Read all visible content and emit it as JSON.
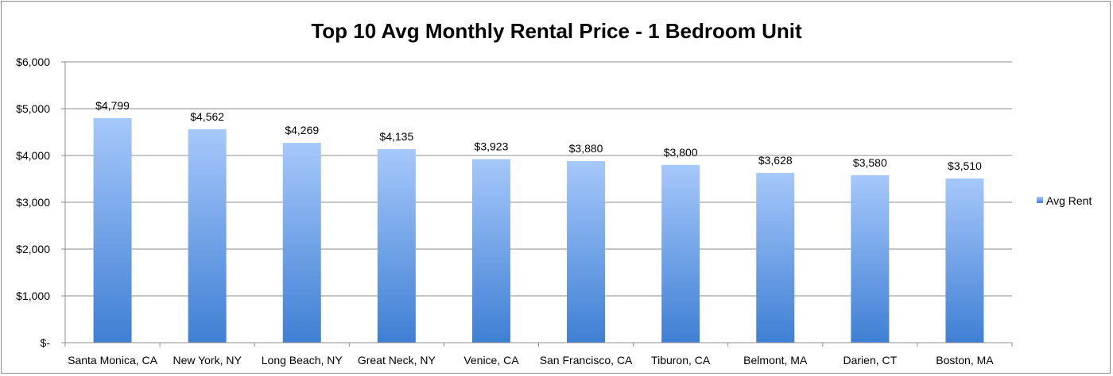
{
  "chart_data": {
    "type": "bar",
    "title": "Top 10 Avg Monthly Rental Price - 1 Bedroom Unit",
    "xlabel": "",
    "ylabel": "",
    "categories": [
      "Santa Monica, CA",
      "New York, NY",
      "Long Beach, NY",
      "Great Neck, NY",
      "Venice, CA",
      "San Francisco, CA",
      "Tiburon, CA",
      "Belmont, MA",
      "Darien, CT",
      "Boston, MA"
    ],
    "series": [
      {
        "name": "Avg Rent",
        "values": [
          4799,
          4562,
          4269,
          4135,
          3923,
          3880,
          3800,
          3628,
          3580,
          3510
        ],
        "data_labels": [
          "$4,799",
          "$4,562",
          "$4,269",
          "$4,135",
          "$3,923",
          "$3,880",
          "$3,800",
          "$3,628",
          "$3,580",
          "$3,510"
        ],
        "color": "#4a86d8"
      }
    ],
    "ylim": [
      0,
      6000
    ],
    "yticks": [
      0,
      1000,
      2000,
      3000,
      4000,
      5000,
      6000
    ],
    "ytick_labels": [
      "$-",
      "$1,000",
      "$2,000",
      "$3,000",
      "$4,000",
      "$5,000",
      "$6,000"
    ],
    "grid": true,
    "legend": {
      "position": "right",
      "entries": [
        "Avg Rent"
      ]
    }
  }
}
